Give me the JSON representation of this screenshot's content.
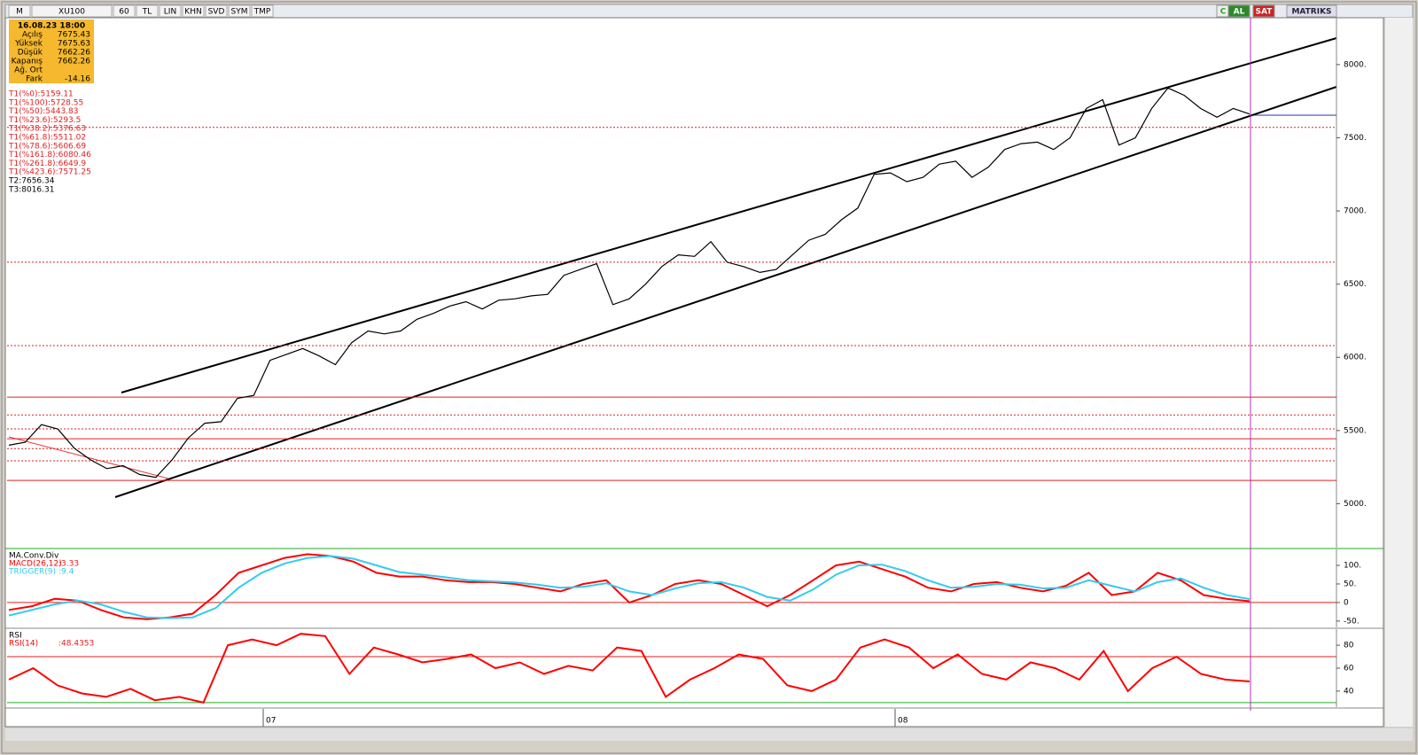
{
  "toolbar": {
    "items": [
      "M",
      "XU100",
      "60",
      "TL",
      "LIN",
      "KHN",
      "SVD",
      "SYM",
      "TMP"
    ],
    "right": [
      "C",
      "AL",
      "SAT",
      "MATRIKS"
    ]
  },
  "info_box": {
    "date": "16.08.23 18:00",
    "rows": [
      {
        "label": "Açılış",
        "value": "7675.43"
      },
      {
        "label": "Yüksek",
        "value": "7675.63"
      },
      {
        "label": "Düşük",
        "value": "7662.26"
      },
      {
        "label": "Kapanış",
        "value": "7662.26"
      },
      {
        "label": "Ağ. Ort"
      },
      {
        "label": "Fark",
        "value": "-14.16"
      }
    ]
  },
  "x_labels": [
    "07",
    "08"
  ],
  "chart_data": [
    {
      "type": "line",
      "title": "XU100",
      "levels": [
        {
          "label": "T1(%0):5159.11",
          "value": 5159.11,
          "style": "solid"
        },
        {
          "label": "T1(%100):5728.55",
          "value": 5728.55,
          "style": "solid"
        },
        {
          "label": "T1(%50):5443.83",
          "value": 5443.83,
          "style": "solid"
        },
        {
          "label": "T1(%23.6):5293.5",
          "value": 5293.5,
          "style": "dashed"
        },
        {
          "label": "T1(%38.2):5376.63",
          "value": 5376.63,
          "style": "dashed"
        },
        {
          "label": "T1(%61.8):5511.02",
          "value": 5511.02,
          "style": "dashed"
        },
        {
          "label": "T1(%78.6):5606.69",
          "value": 5606.69,
          "style": "dashed"
        },
        {
          "label": "T1(%161.8):6080.46",
          "value": 6080.46,
          "style": "dashed"
        },
        {
          "label": "T1(%261.8):6649.9",
          "value": 6649.9,
          "style": "dashed"
        },
        {
          "label": "T1(%423.6):7571.25",
          "value": 7571.25,
          "style": "dashed"
        }
      ],
      "targets": [
        "T2:7656.34",
        "T3:8016.31"
      ],
      "series": [
        {
          "name": "XU100",
          "color": "#000000",
          "values": [
            5400,
            5420,
            5540,
            5510,
            5380,
            5300,
            5240,
            5260,
            5200,
            5180,
            5300,
            5450,
            5550,
            5560,
            5720,
            5740,
            5980,
            6020,
            6060,
            6010,
            5950,
            6100,
            6180,
            6160,
            6180,
            6260,
            6300,
            6350,
            6380,
            6330,
            6390,
            6400,
            6420,
            6430,
            6560,
            6600,
            6640,
            6360,
            6400,
            6500,
            6620,
            6700,
            6690,
            6790,
            6650,
            6620,
            6580,
            6600,
            6700,
            6800,
            6840,
            6940,
            7020,
            7250,
            7260,
            7200,
            7230,
            7320,
            7340,
            7230,
            7300,
            7420,
            7460,
            7470,
            7420,
            7500,
            7700,
            7760,
            7450,
            7500,
            7700,
            7840,
            7790,
            7700,
            7640,
            7700,
            7662.26
          ]
        }
      ],
      "ylim": [
        4700,
        8320
      ],
      "yticks": [
        {
          "value": 5000,
          "label": "5000."
        },
        {
          "value": 5500,
          "label": "5500."
        },
        {
          "value": 6000,
          "label": "6000."
        },
        {
          "value": 6500,
          "label": "6500."
        },
        {
          "value": 7000,
          "label": "7000."
        },
        {
          "value": 7500,
          "label": "7500."
        },
        {
          "value": 8000,
          "label": "8000."
        }
      ]
    },
    {
      "type": "line",
      "title": "MA.Conv.Div",
      "series": [
        {
          "name": "MACD(26,12)",
          "value_label": ":3.33",
          "color": "#ff0000",
          "values": [
            -20,
            -10,
            10,
            5,
            -20,
            -40,
            -45,
            -40,
            -30,
            20,
            80,
            100,
            120,
            130,
            125,
            110,
            80,
            70,
            70,
            60,
            55,
            55,
            50,
            40,
            30,
            50,
            60,
            0,
            20,
            50,
            60,
            50,
            20,
            -10,
            20,
            60,
            100,
            110,
            90,
            70,
            40,
            30,
            50,
            55,
            40,
            30,
            45,
            80,
            20,
            30,
            80,
            60,
            20,
            10,
            3.33
          ]
        },
        {
          "name": "TRIGGER(9)",
          "value_label": ":9.4",
          "color": "#33ccee",
          "values": [
            -35,
            -20,
            -5,
            5,
            -5,
            -25,
            -40,
            -42,
            -40,
            -15,
            40,
            80,
            105,
            120,
            125,
            118,
            100,
            82,
            75,
            68,
            60,
            57,
            54,
            48,
            40,
            42,
            52,
            30,
            20,
            38,
            52,
            55,
            40,
            15,
            5,
            35,
            75,
            100,
            102,
            85,
            60,
            40,
            42,
            50,
            48,
            38,
            40,
            60,
            45,
            30,
            55,
            65,
            40,
            20,
            9.4
          ]
        }
      ],
      "ylim": [
        -67,
        143
      ],
      "yticks": [
        {
          "value": -50,
          "label": "-50."
        },
        0,
        {
          "value": 50,
          "label": "50."
        },
        {
          "value": 100,
          "label": "100."
        }
      ]
    },
    {
      "type": "line",
      "title": "RSI",
      "series": [
        {
          "name": "RSI(14)",
          "value_label": ":48.4353",
          "color": "#ff0000",
          "values": [
            50,
            60,
            45,
            38,
            35,
            42,
            32,
            35,
            30,
            80,
            85,
            80,
            90,
            88,
            55,
            78,
            72,
            65,
            68,
            72,
            60,
            65,
            55,
            62,
            58,
            78,
            75,
            35,
            50,
            60,
            72,
            68,
            45,
            40,
            50,
            78,
            85,
            78,
            60,
            72,
            55,
            50,
            65,
            60,
            50,
            75,
            40,
            60,
            70,
            55,
            50,
            48.4353
          ]
        }
      ],
      "ylim": [
        26,
        94
      ],
      "yticks": [
        40,
        60,
        80
      ]
    }
  ]
}
